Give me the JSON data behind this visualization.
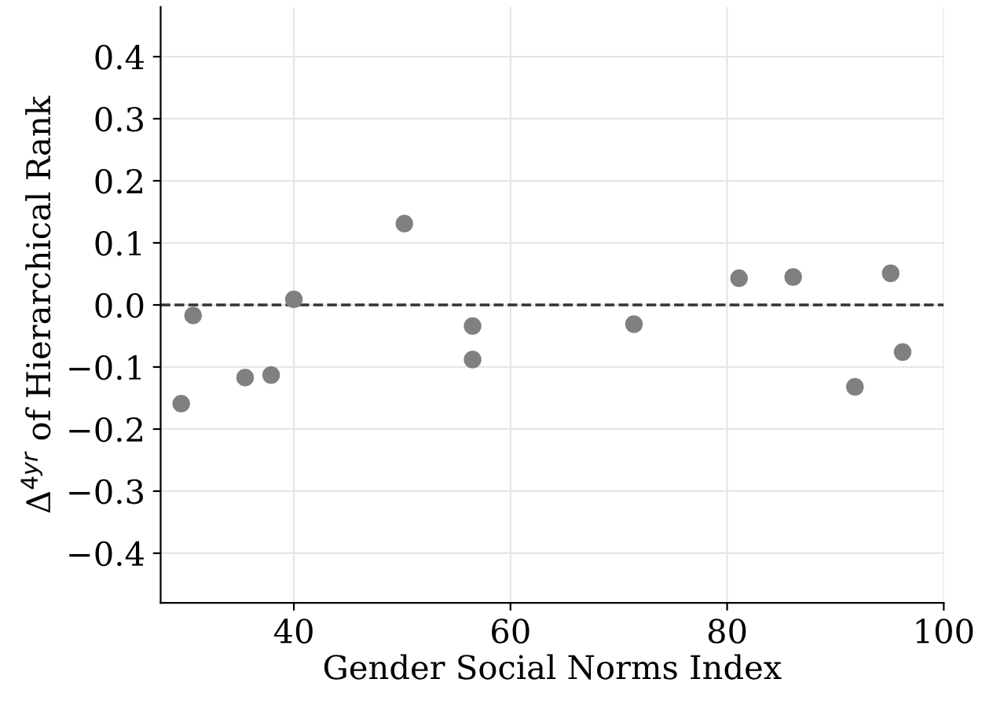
{
  "chart_data": {
    "type": "scatter",
    "xlabel": "Gender Social Norms Index",
    "ylabel": "Δ$^{4yr}$ of Hierarchical Rank",
    "x": [
      29.6,
      30.7,
      35.5,
      37.9,
      40.0,
      50.2,
      56.5,
      56.5,
      71.4,
      81.1,
      86.1,
      91.8,
      95.1,
      96.2
    ],
    "series": [
      {
        "color": "#808080",
        "values": [
          -0.159,
          -0.017,
          -0.117,
          -0.113,
          0.009,
          0.131,
          -0.034,
          -0.088,
          -0.031,
          0.043,
          0.045,
          -0.132,
          0.051,
          -0.076
        ]
      }
    ],
    "xlim": [
      27.7,
      100
    ],
    "xticks": [
      40,
      60,
      80,
      100
    ],
    "ylim": [
      -0.48,
      0.48
    ],
    "yticks": [
      {
        "value": -0.4,
        "label": "−0.4"
      },
      {
        "value": -0.3,
        "label": "−0.3"
      },
      {
        "value": -0.2,
        "label": "−0.2"
      },
      {
        "value": -0.1,
        "label": "−0.1"
      },
      {
        "value": 0.0,
        "label": "0.0"
      },
      {
        "value": 0.1,
        "label": "0.1"
      },
      {
        "value": 0.2,
        "label": "0.2"
      },
      {
        "value": 0.3,
        "label": "0.3"
      },
      {
        "value": 0.4,
        "label": "0.4"
      }
    ],
    "ref_lines": [
      {
        "axis": "y",
        "value": 0,
        "color": "#333333",
        "line_style": "dashed"
      }
    ],
    "grid": true,
    "marker": "circle"
  }
}
